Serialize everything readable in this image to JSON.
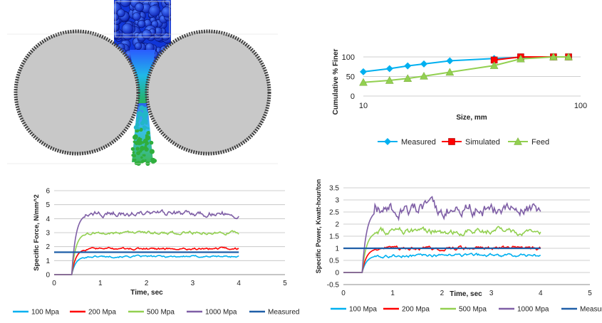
{
  "chart_data": [
    {
      "type": "line",
      "xscale": "log",
      "xlabel": "Size, mm",
      "ylabel": "Cumulative % Finer",
      "xlim": [
        10,
        100
      ],
      "ylim": [
        0,
        100
      ],
      "xticks": [
        10,
        100
      ],
      "yticks": [
        0,
        50,
        100
      ],
      "legend_position": "bottom",
      "series": [
        {
          "name": "Measured",
          "color": "#00b0f0",
          "marker": "diamond",
          "x": [
            10,
            13.2,
            16.0,
            19.0,
            25.0,
            40.0,
            53.0,
            75.0,
            88.0
          ],
          "y": [
            62,
            70,
            77,
            82,
            90,
            96,
            99,
            100,
            100
          ]
        },
        {
          "name": "Simulated",
          "color": "#ff0000",
          "marker": "square",
          "x": [
            40.0,
            53.0,
            75.0,
            88.0
          ],
          "y": [
            92,
            100,
            100,
            100
          ]
        },
        {
          "name": "Feed",
          "color": "#92d050",
          "marker": "triangle",
          "x": [
            10,
            13.2,
            16.0,
            19.0,
            25.0,
            40.0,
            53.0,
            75.0,
            88.0
          ],
          "y": [
            35,
            40,
            45,
            51,
            61,
            78,
            95,
            100,
            100
          ]
        }
      ]
    },
    {
      "type": "line",
      "xlabel": "Time, sec",
      "ylabel": "Specific Force, N/mm^2",
      "xlim": [
        0,
        5
      ],
      "ylim": [
        0,
        6
      ],
      "xticks": [
        0,
        1,
        2,
        3,
        4,
        5
      ],
      "yticks": [
        0,
        1,
        2,
        3,
        4,
        5,
        6
      ],
      "grid": true,
      "legend_position": "bottom",
      "ramp_start": 0.38,
      "t_end": 4.0,
      "series": [
        {
          "name": "100 Mpa",
          "color": "#00b0f0",
          "level": 1.3,
          "noise": 0.06
        },
        {
          "name": "200 Mpa",
          "color": "#ff0000",
          "level": 1.85,
          "noise": 0.07
        },
        {
          "name": "500 Mpa",
          "color": "#92d050",
          "level": 3.0,
          "noise": 0.1
        },
        {
          "name": "1000 Mpa",
          "color": "#7f5fa6",
          "level": 4.35,
          "noise": 0.18
        },
        {
          "name": "Measured",
          "color": "#1f5fa8",
          "constant": 1.6,
          "x_start": 0
        }
      ]
    },
    {
      "type": "line",
      "xlabel": "Time, sec",
      "ylabel": "Specific Power, Kwatt-hour/ton",
      "xlim": [
        0,
        5
      ],
      "ylim": [
        -0.5,
        3.5
      ],
      "xticks": [
        0,
        1,
        2,
        3,
        4,
        5
      ],
      "yticks": [
        -0.5,
        0,
        0.5,
        1,
        1.5,
        2,
        2.5,
        3,
        3.5
      ],
      "grid": true,
      "legend_position": "bottom",
      "ramp_start": 0.38,
      "t_end": 4.0,
      "series": [
        {
          "name": "100 Mpa",
          "color": "#00b0f0",
          "level": 0.7,
          "noise": 0.06
        },
        {
          "name": "200 Mpa",
          "color": "#ff0000",
          "level": 1.0,
          "noise": 0.07
        },
        {
          "name": "500 Mpa",
          "color": "#92d050",
          "level": 1.7,
          "noise": 0.12
        },
        {
          "name": "1000 Mpa",
          "color": "#7f5fa6",
          "level": 2.6,
          "noise": 0.25
        },
        {
          "name": "Measured",
          "color": "#1f5fa8",
          "constant": 1.0,
          "x_start": 0
        }
      ]
    }
  ]
}
